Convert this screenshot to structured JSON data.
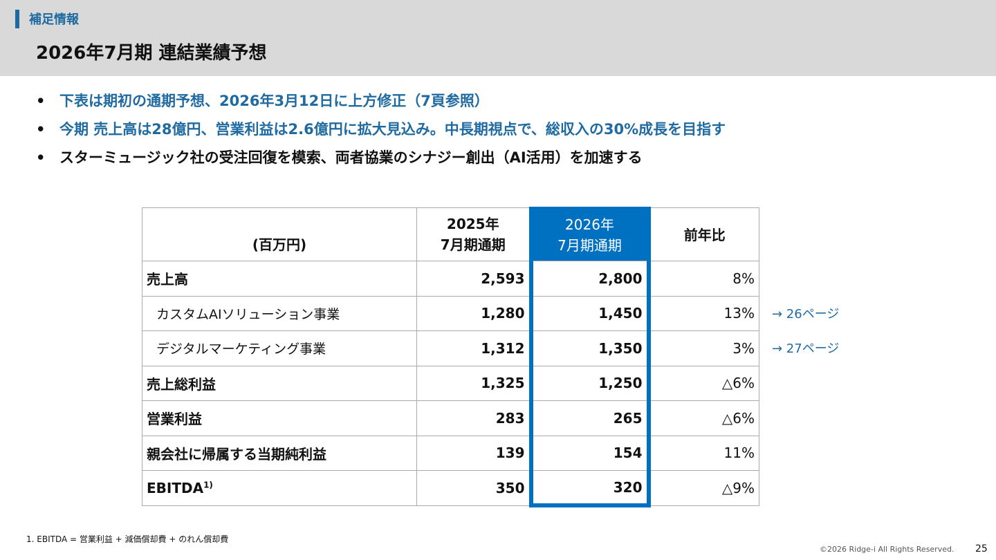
{
  "header": {
    "section": "補足情報",
    "title": "2026年7月期 連結業績予想"
  },
  "bullets": [
    {
      "text": "下表は期初の通期予想、2026年3月12日に上方修正（7頁参照）",
      "color": "#1f6aa0"
    },
    {
      "text": "今期  売上高は28億円、営業利益は2.6億円に拡大見込み。中長期視点で、総収入の30%成長を目指す",
      "color": "#1f6aa0"
    },
    {
      "text": "スターミュージック社の受注回復を模索、両者協業のシナジー創出（AI活用）を加速する",
      "color": "#111111"
    }
  ],
  "table": {
    "unit": "(百万円)",
    "col1": [
      "2025年",
      "7月期通期"
    ],
    "col2": [
      "2026年",
      "7月期通期"
    ],
    "col3": "前年比",
    "highlight_color": "#0070c0",
    "rows": [
      {
        "label": "売上高",
        "v2025": "2,593",
        "v2026": "2,800",
        "yoy": "8%"
      },
      {
        "label": "カスタムAIソリューション事業",
        "v2025": "1,280",
        "v2026": "1,450",
        "yoy": "13%",
        "link": "→ 26ページ"
      },
      {
        "label": "デジタルマーケティング事業",
        "v2025": "1,312",
        "v2026": "1,350",
        "yoy": "3%",
        "link": "→ 27ページ"
      },
      {
        "label": "売上総利益",
        "v2025": "1,325",
        "v2026": "1,250",
        "yoy": "△6%"
      },
      {
        "label": "営業利益",
        "v2025": "283",
        "v2026": "265",
        "yoy": "△6%"
      },
      {
        "label": "親会社に帰属する当期純利益",
        "v2025": "139",
        "v2026": "154",
        "yoy": "11%"
      },
      {
        "label": "EBITDA",
        "sup": "1)",
        "v2025": "350",
        "v2026": "320",
        "yoy": "△9%"
      }
    ]
  },
  "footnote": "1. EBITDA = 営業利益 + 減価償却費 + のれん償却費",
  "copyright": "©2026 Ridge-i All Rights Reserved.",
  "page_number": "25"
}
